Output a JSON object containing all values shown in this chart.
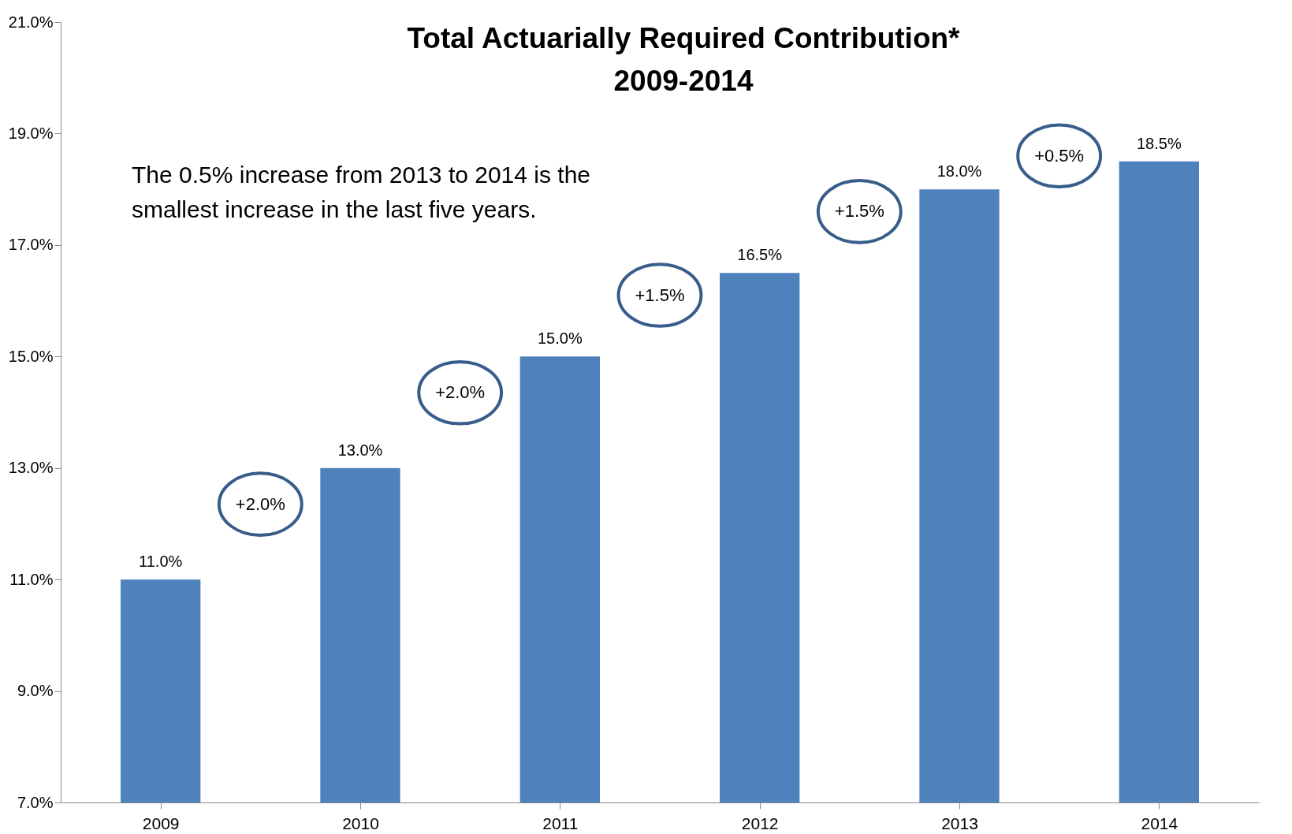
{
  "chart_data": {
    "type": "bar",
    "title": "Total Actuarially Required Contribution*",
    "subtitle": "2009-2014",
    "categories": [
      "2009",
      "2010",
      "2011",
      "2012",
      "2013",
      "2014"
    ],
    "values": [
      11,
      13,
      15,
      16.5,
      18,
      18.5
    ],
    "value_labels": [
      "11.0%",
      "13.0%",
      "15.0%",
      "16.5%",
      "18.0%",
      "18.5%"
    ],
    "color": "#4f81bd",
    "ylim": [
      7,
      21
    ],
    "yticks": [
      {
        "value": 7,
        "label": "7.0%"
      },
      {
        "value": 9,
        "label": "9.0%"
      },
      {
        "value": 11,
        "label": "11.0%"
      },
      {
        "value": 13,
        "label": "13.0%"
      },
      {
        "value": 15,
        "label": "15.0%"
      },
      {
        "value": 17,
        "label": "17.0%"
      },
      {
        "value": 19,
        "label": "19.0%"
      },
      {
        "value": 21,
        "label": "21.0%"
      }
    ],
    "grid": false,
    "annotations": [
      "The 0.5% increase from 2013 to 2014 is the smallest increase in the last five years.",
      "+2.0%",
      "+2.0%",
      "+1.5%",
      "+1.5%",
      "+0.5%"
    ]
  }
}
